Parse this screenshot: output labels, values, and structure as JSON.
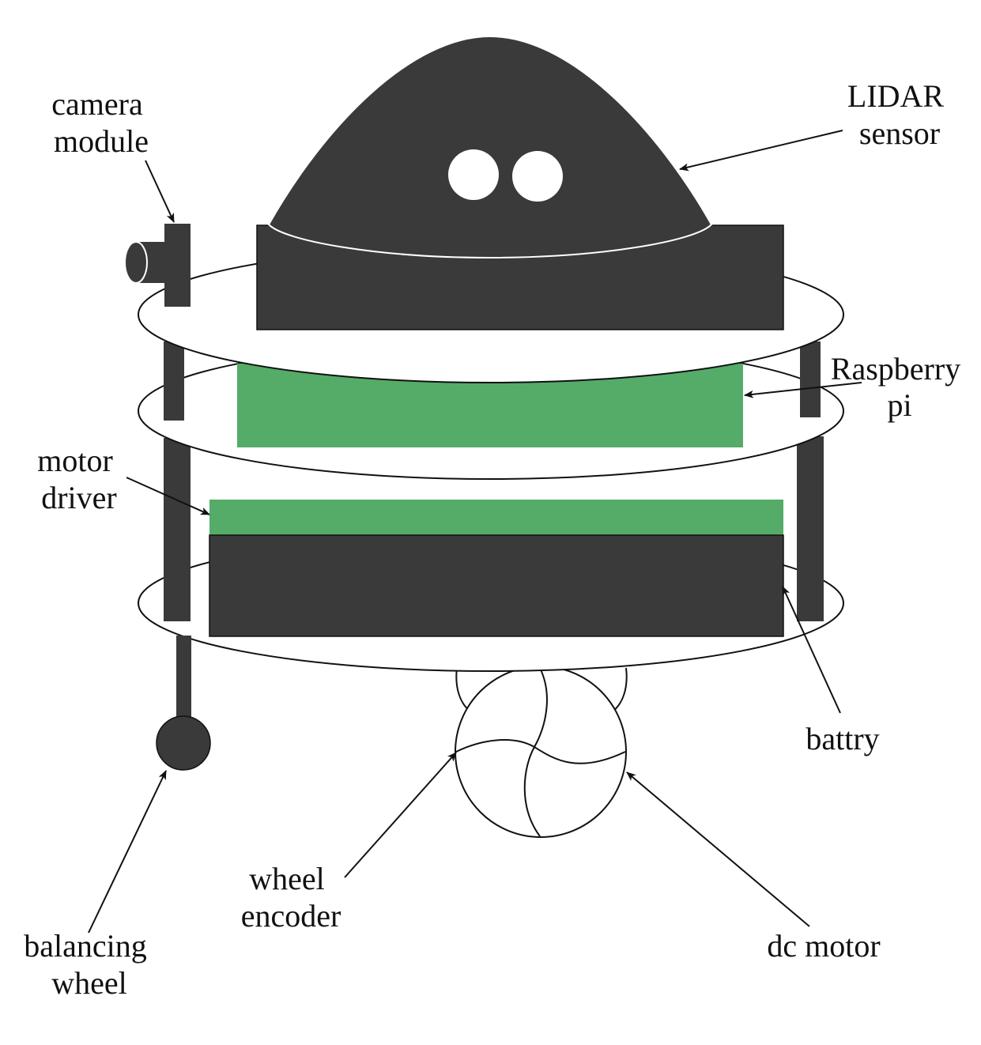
{
  "labels": {
    "camera_module": [
      "camera",
      "module"
    ],
    "lidar_sensor": [
      "LIDAR",
      "sensor"
    ],
    "raspberry_pi": [
      "Raspberry",
      "pi"
    ],
    "motor_driver": [
      "motor",
      "driver"
    ],
    "battery": [
      "battry"
    ],
    "wheel_encoder": [
      "wheel",
      "encoder"
    ],
    "dc_motor": [
      "dc motor"
    ],
    "balancing_wheel": [
      "balancing",
      "wheel"
    ]
  },
  "colors": {
    "dark_component": "#3a3a3a",
    "green_board": "#55ab68",
    "outline": "#111111",
    "background": "#ffffff"
  }
}
